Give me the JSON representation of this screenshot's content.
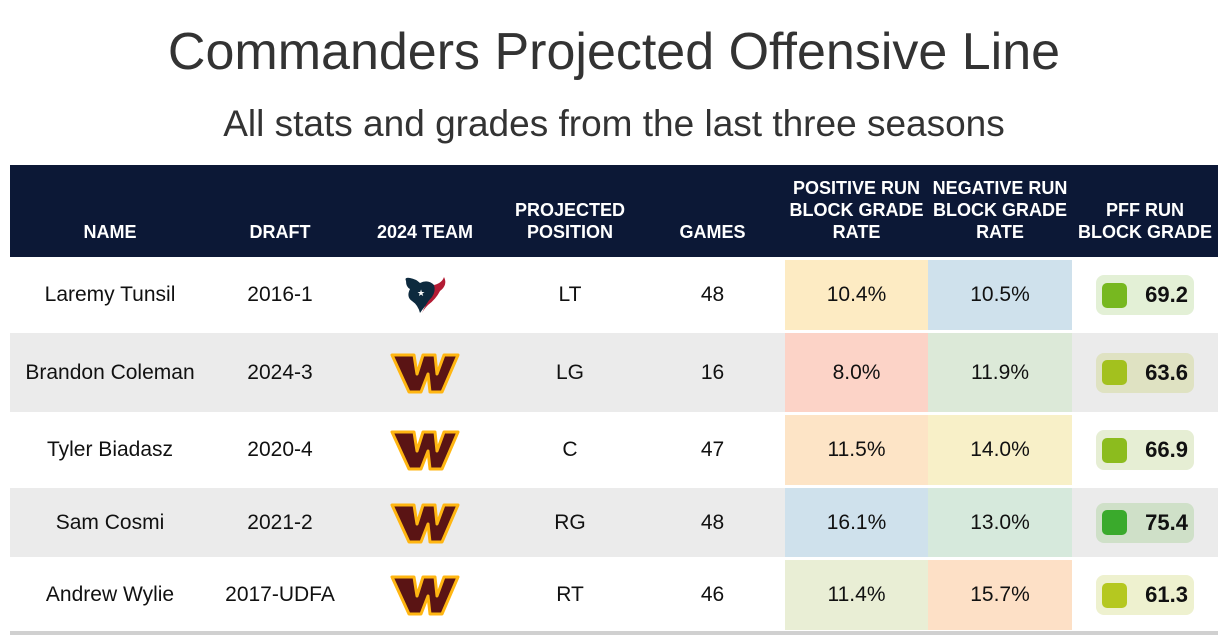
{
  "title": "Commanders Projected Offensive Line",
  "subtitle": "All stats and grades from the last three seasons",
  "headers": [
    "NAME",
    "DRAFT",
    "2024 TEAM",
    "PROJECTED POSITION",
    "GAMES",
    "POSITIVE RUN BLOCK GRADE RATE",
    "NEGATIVE RUN BLOCK GRADE RATE",
    "PFF RUN BLOCK GRADE"
  ],
  "rows": [
    {
      "name": "Laremy Tunsil",
      "draft": "2016-1",
      "team": "texans-logo",
      "position": "LT",
      "games": "48",
      "pos": "10.4%",
      "neg": "10.5%",
      "grade": "69.2",
      "posColor": "#fdebc3",
      "negColor": "#cfe1ec",
      "gradeBg": "#e3f0d6",
      "gradeSq": "#77b820"
    },
    {
      "name": "Brandon Coleman",
      "draft": "2024-3",
      "team": "commanders-logo",
      "position": "LG",
      "games": "16",
      "pos": "8.0%",
      "neg": "11.9%",
      "grade": "63.6",
      "posColor": "#fcd3c7",
      "negColor": "#dce9d8",
      "gradeBg": "#dfe2c2",
      "gradeSq": "#a3c11e"
    },
    {
      "name": "Tyler Biadasz",
      "draft": "2020-4",
      "team": "commanders-logo",
      "position": "C",
      "games": "47",
      "pos": "11.5%",
      "neg": "14.0%",
      "grade": "66.9",
      "posColor": "#fde4c6",
      "negColor": "#f8f0c8",
      "gradeBg": "#e6eed4",
      "gradeSq": "#8cbc1e"
    },
    {
      "name": "Sam Cosmi",
      "draft": "2021-2",
      "team": "commanders-logo",
      "position": "RG",
      "games": "48",
      "pos": "16.1%",
      "neg": "13.0%",
      "grade": "75.4",
      "posColor": "#cfe1ec",
      "negColor": "#d6e9dc",
      "gradeBg": "#cfe0c8",
      "gradeSq": "#3aaa2c"
    },
    {
      "name": "Andrew Wylie",
      "draft": "2017-UDFA",
      "team": "commanders-logo",
      "position": "RT",
      "games": "46",
      "pos": "11.4%",
      "neg": "15.7%",
      "grade": "61.3",
      "posColor": "#e9eed5",
      "negColor": "#fde0c6",
      "gradeBg": "#eef1cf",
      "gradeSq": "#b5c820"
    }
  ]
}
